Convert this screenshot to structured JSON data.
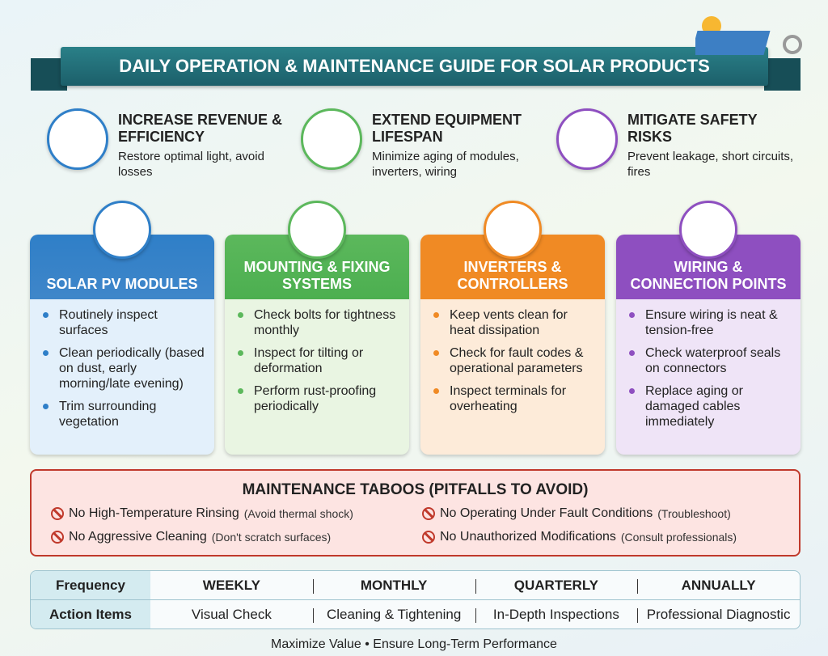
{
  "header": {
    "title": "DAILY OPERATION & MAINTENANCE GUIDE FOR SOLAR PRODUCTS"
  },
  "benefits": [
    {
      "title": "INCREASE REVENUE & EFFICIENCY",
      "text": "Restore optimal light, avoid losses"
    },
    {
      "title": "EXTEND EQUIPMENT LIFESPAN",
      "text": "Minimize aging of modules, inverters, wiring"
    },
    {
      "title": "MITIGATE SAFETY RISKS",
      "text": "Prevent leakage, short circuits, fires"
    }
  ],
  "cards": [
    {
      "title": "SOLAR PV MODULES",
      "items": [
        "Routinely inspect surfaces",
        "Clean periodically (based on dust, early morning/late evening)",
        "Trim surrounding vegetation"
      ]
    },
    {
      "title": "MOUNTING & FIXING SYSTEMS",
      "items": [
        "Check bolts for tightness monthly",
        "Inspect for tilting or deformation",
        "Perform rust-proofing periodically"
      ]
    },
    {
      "title": "INVERTERS & CONTROLLERS",
      "items": [
        "Keep vents clean for heat dissipation",
        "Check for fault codes & operational parameters",
        "Inspect terminals for overheating"
      ]
    },
    {
      "title": "WIRING & CONNECTION POINTS",
      "items": [
        "Ensure wiring is neat & tension-free",
        "Check waterproof seals on connectors",
        "Replace aging or damaged cables immediately"
      ]
    }
  ],
  "taboos": {
    "title": "MAINTENANCE TABOOS (PITFALLS TO AVOID)",
    "items": [
      {
        "text": "No High-Temperature Rinsing",
        "note": "(Avoid thermal shock)"
      },
      {
        "text": "No Operating Under Fault Conditions",
        "note": "(Troubleshoot)"
      },
      {
        "text": "No Aggressive Cleaning",
        "note": "(Don't scratch surfaces)"
      },
      {
        "text": "No Unauthorized Modifications",
        "note": "(Consult professionals)"
      }
    ]
  },
  "schedule": {
    "row_labels": [
      "Frequency",
      "Action Items"
    ],
    "frequencies": [
      "WEEKLY",
      "MONTHLY",
      "QUARTERLY",
      "ANNUALLY"
    ],
    "actions": [
      "Visual Check",
      "Cleaning & Tightening",
      "In-Depth Inspections",
      "Professional Diagnostic"
    ]
  },
  "footer": {
    "text": "Maximize Value • Ensure Long-Term Performance"
  }
}
